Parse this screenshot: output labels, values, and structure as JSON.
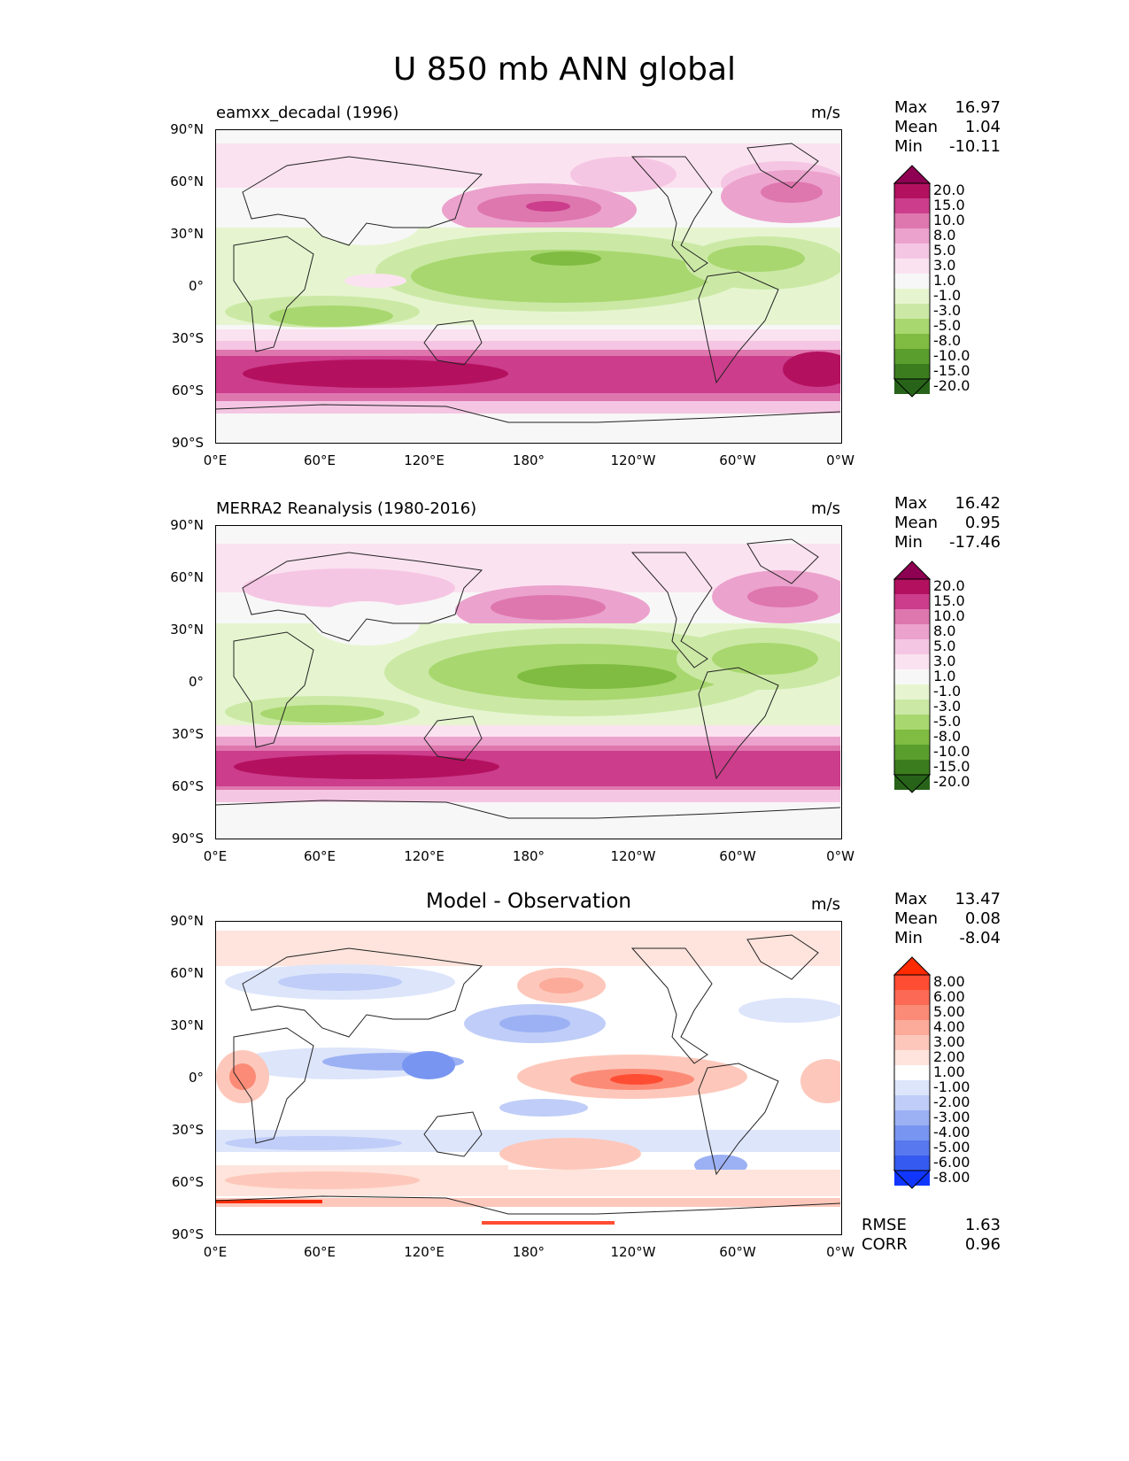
{
  "title": "U 850 mb ANN global",
  "lat_labels": [
    "90°N",
    "60°N",
    "30°N",
    "0°",
    "30°S",
    "60°S",
    "90°S"
  ],
  "lon_labels": [
    "0°E",
    "60°E",
    "120°E",
    "180°",
    "120°W",
    "60°W",
    "0°W"
  ],
  "panels": [
    {
      "name": "test",
      "title": "eamxx_decadal (1996)",
      "units": "m/s",
      "stats": {
        "max_label": "Max",
        "max": "16.97",
        "mean_label": "Mean",
        "mean": "1.04",
        "min_label": "Min",
        "min": "-10.11"
      },
      "colorbar_ticks": [
        "20.0",
        "15.0",
        "10.0",
        "8.0",
        "5.0",
        "3.0",
        "1.0",
        "-1.0",
        "-3.0",
        "-5.0",
        "-8.0",
        "-10.0",
        "-15.0",
        "-20.0"
      ],
      "colorbar_colors": [
        "#8e0152",
        "#b3115f",
        "#cc3d8c",
        "#de77ae",
        "#eba2cd",
        "#f5c6e3",
        "#fbe2f0",
        "#f7f7f7",
        "#e6f5d0",
        "#cbe9a5",
        "#a8d76f",
        "#7fbc41",
        "#5a9e2e",
        "#3b7d1e",
        "#276419"
      ]
    },
    {
      "name": "reference",
      "title": "MERRA2 Reanalysis (1980-2016)",
      "units": "m/s",
      "stats": {
        "max_label": "Max",
        "max": "16.42",
        "mean_label": "Mean",
        "mean": "0.95",
        "min_label": "Min",
        "min": "-17.46"
      },
      "colorbar_ticks": [
        "20.0",
        "15.0",
        "10.0",
        "8.0",
        "5.0",
        "3.0",
        "1.0",
        "-1.0",
        "-3.0",
        "-5.0",
        "-8.0",
        "-10.0",
        "-15.0",
        "-20.0"
      ],
      "colorbar_colors": [
        "#8e0152",
        "#b3115f",
        "#cc3d8c",
        "#de77ae",
        "#eba2cd",
        "#f5c6e3",
        "#fbe2f0",
        "#f7f7f7",
        "#e6f5d0",
        "#cbe9a5",
        "#a8d76f",
        "#7fbc41",
        "#5a9e2e",
        "#3b7d1e",
        "#276419"
      ]
    },
    {
      "name": "difference",
      "title": "Model - Observation",
      "units": "m/s",
      "stats": {
        "max_label": "Max",
        "max": "13.47",
        "mean_label": "Mean",
        "mean": "0.08",
        "min_label": "Min",
        "min": "-8.04"
      },
      "colorbar_ticks": [
        "8.00",
        "6.00",
        "5.00",
        "4.00",
        "3.00",
        "2.00",
        "1.00",
        "-1.00",
        "-2.00",
        "-3.00",
        "-4.00",
        "-5.00",
        "-6.00",
        "-8.00"
      ],
      "colorbar_colors": [
        "#ff2a00",
        "#ff4d33",
        "#fc6a55",
        "#fb8b77",
        "#fcaa99",
        "#fdc8bb",
        "#fee4dc",
        "#ffffff",
        "#dde5fb",
        "#bfcdf8",
        "#9cb1f4",
        "#7895f1",
        "#5878ef",
        "#355af0",
        "#1036ff"
      ],
      "rmse_label": "RMSE",
      "rmse": "1.63",
      "corr_label": "CORR",
      "corr": "0.96"
    }
  ]
}
